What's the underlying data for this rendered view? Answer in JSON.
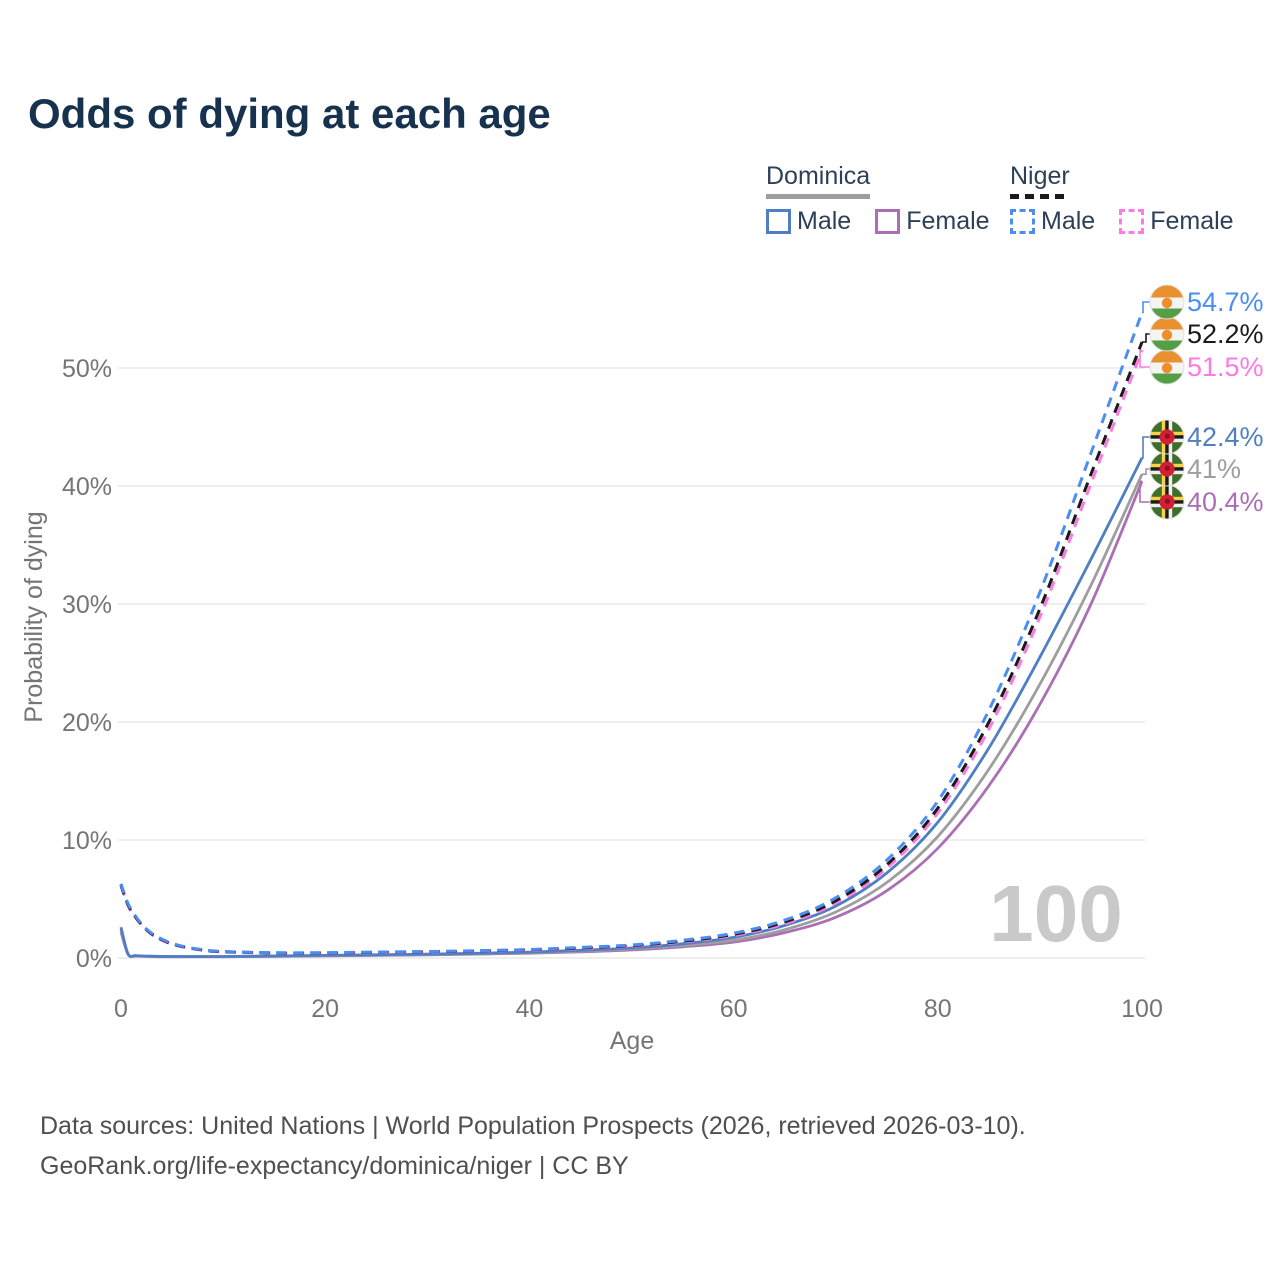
{
  "title": "Odds of dying at each age",
  "legend": {
    "groups": [
      {
        "country": "Dominica",
        "line_style": "solid",
        "underline_color": "#9e9e9e",
        "items": [
          {
            "label": "Male",
            "color": "#4f7fc2",
            "dashed": false
          },
          {
            "label": "Female",
            "color": "#ab6fb5",
            "dashed": false
          }
        ]
      },
      {
        "country": "Niger",
        "line_style": "dashed",
        "underline_color": "#1a1a1a",
        "items": [
          {
            "label": "Male",
            "color": "#4c8df2",
            "dashed": true
          },
          {
            "label": "Female",
            "color": "#fb7be0",
            "dashed": true
          }
        ]
      }
    ]
  },
  "watermark": "100",
  "footer": {
    "line1": "Data sources: United Nations | World Population Prospects (2026, retrieved 2026-03-10).",
    "line2": "GeoRank.org/life-expectancy/dominica/niger | CC BY"
  },
  "chart_data": {
    "type": "line",
    "title": "Odds of dying at each age",
    "xlabel": "Age",
    "ylabel": "Probability of dying",
    "xlim": [
      0,
      100
    ],
    "ylim": [
      0,
      58
    ],
    "grid": "horizontal",
    "legend_position": "top-right",
    "x_ticks": [
      {
        "value": 0,
        "label": "0"
      },
      {
        "value": 20,
        "label": "20"
      },
      {
        "value": 40,
        "label": "40"
      },
      {
        "value": 60,
        "label": "60"
      },
      {
        "value": 80,
        "label": "80"
      },
      {
        "value": 100,
        "label": "100"
      }
    ],
    "y_ticks": [
      {
        "value": 0,
        "label": "0%"
      },
      {
        "value": 10,
        "label": "10%"
      },
      {
        "value": 20,
        "label": "20%"
      },
      {
        "value": 30,
        "label": "30%"
      },
      {
        "value": 40,
        "label": "40%"
      },
      {
        "value": 50,
        "label": "50%"
      }
    ],
    "series": [
      {
        "id": "dominica-female",
        "name": "Dominica Female",
        "country": "Dominica",
        "sex": "Female",
        "color": "#ab6fb5",
        "dashed": false,
        "flag_icon": "dominica-flag-icon",
        "end_label": "40.4%",
        "end_value": 40.4,
        "points": [
          [
            0,
            2.2
          ],
          [
            0.7,
            0.3
          ],
          [
            1.5,
            0.17
          ],
          [
            3,
            0.13
          ],
          [
            5,
            0.11
          ],
          [
            10,
            0.11
          ],
          [
            15,
            0.14
          ],
          [
            20,
            0.18
          ],
          [
            25,
            0.22
          ],
          [
            30,
            0.27
          ],
          [
            35,
            0.33
          ],
          [
            40,
            0.41
          ],
          [
            45,
            0.52
          ],
          [
            50,
            0.68
          ],
          [
            55,
            0.95
          ],
          [
            60,
            1.35
          ],
          [
            65,
            2.15
          ],
          [
            70,
            3.45
          ],
          [
            75,
            5.7
          ],
          [
            80,
            9.3
          ],
          [
            85,
            14.6
          ],
          [
            90,
            21.5
          ],
          [
            95,
            30.0
          ],
          [
            100,
            40.4
          ]
        ]
      },
      {
        "id": "dominica-both",
        "name": "Dominica Both sexes",
        "country": "Dominica",
        "sex": "Both",
        "color": "#9e9e9e",
        "dashed": false,
        "flag_icon": "dominica-flag-icon",
        "end_label": "41%",
        "end_value": 41,
        "points": [
          [
            0,
            2.4
          ],
          [
            0.7,
            0.32
          ],
          [
            1.5,
            0.18
          ],
          [
            3,
            0.14
          ],
          [
            5,
            0.12
          ],
          [
            10,
            0.12
          ],
          [
            15,
            0.15
          ],
          [
            20,
            0.2
          ],
          [
            25,
            0.24
          ],
          [
            30,
            0.3
          ],
          [
            35,
            0.36
          ],
          [
            40,
            0.45
          ],
          [
            45,
            0.58
          ],
          [
            50,
            0.76
          ],
          [
            55,
            1.05
          ],
          [
            60,
            1.5
          ],
          [
            65,
            2.4
          ],
          [
            70,
            3.9
          ],
          [
            75,
            6.4
          ],
          [
            80,
            10.3
          ],
          [
            85,
            16.0
          ],
          [
            90,
            23.2
          ],
          [
            95,
            31.6
          ],
          [
            100,
            41.0
          ]
        ]
      },
      {
        "id": "dominica-male",
        "name": "Dominica Male",
        "country": "Dominica",
        "sex": "Male",
        "color": "#4f7fc2",
        "dashed": false,
        "flag_icon": "dominica-flag-icon",
        "end_label": "42.4%",
        "end_value": 42.4,
        "points": [
          [
            0,
            2.6
          ],
          [
            0.7,
            0.35
          ],
          [
            1.5,
            0.2
          ],
          [
            3,
            0.15
          ],
          [
            5,
            0.13
          ],
          [
            10,
            0.13
          ],
          [
            15,
            0.17
          ],
          [
            20,
            0.22
          ],
          [
            25,
            0.27
          ],
          [
            30,
            0.33
          ],
          [
            35,
            0.4
          ],
          [
            40,
            0.5
          ],
          [
            45,
            0.65
          ],
          [
            50,
            0.85
          ],
          [
            55,
            1.2
          ],
          [
            60,
            1.75
          ],
          [
            65,
            2.75
          ],
          [
            70,
            4.4
          ],
          [
            75,
            7.2
          ],
          [
            80,
            11.5
          ],
          [
            85,
            17.8
          ],
          [
            90,
            25.5
          ],
          [
            95,
            33.8
          ],
          [
            100,
            42.4
          ]
        ]
      },
      {
        "id": "niger-female",
        "name": "Niger Female",
        "country": "Niger",
        "sex": "Female",
        "color": "#fb7be0",
        "dashed": true,
        "flag_icon": "niger-flag-icon",
        "end_label": "51.5%",
        "end_value": 51.5,
        "points": [
          [
            0,
            6.1
          ],
          [
            0.5,
            4.85
          ],
          [
            1,
            3.95
          ],
          [
            2,
            2.8
          ],
          [
            3,
            2.0
          ],
          [
            4,
            1.5
          ],
          [
            5,
            1.18
          ],
          [
            6,
            0.95
          ],
          [
            8,
            0.66
          ],
          [
            10,
            0.51
          ],
          [
            15,
            0.42
          ],
          [
            20,
            0.42
          ],
          [
            25,
            0.46
          ],
          [
            30,
            0.51
          ],
          [
            35,
            0.58
          ],
          [
            40,
            0.67
          ],
          [
            45,
            0.8
          ],
          [
            50,
            1.0
          ],
          [
            55,
            1.35
          ],
          [
            60,
            1.9
          ],
          [
            65,
            2.9
          ],
          [
            70,
            4.65
          ],
          [
            75,
            7.6
          ],
          [
            80,
            12.3
          ],
          [
            85,
            19.4
          ],
          [
            90,
            28.9
          ],
          [
            95,
            40.2
          ],
          [
            100,
            51.5
          ]
        ]
      },
      {
        "id": "niger-both",
        "name": "Niger Both sexes",
        "country": "Niger",
        "sex": "Both",
        "color": "#1a1a1a",
        "dashed": true,
        "flag_icon": "niger-flag-icon",
        "end_label": "52.2%",
        "end_value": 52.2,
        "points": [
          [
            0,
            6.2
          ],
          [
            0.5,
            4.9
          ],
          [
            1,
            4.0
          ],
          [
            2,
            2.85
          ],
          [
            3,
            2.05
          ],
          [
            4,
            1.55
          ],
          [
            5,
            1.2
          ],
          [
            6,
            0.97
          ],
          [
            8,
            0.68
          ],
          [
            10,
            0.53
          ],
          [
            15,
            0.43
          ],
          [
            20,
            0.43
          ],
          [
            25,
            0.48
          ],
          [
            30,
            0.53
          ],
          [
            35,
            0.6
          ],
          [
            40,
            0.7
          ],
          [
            45,
            0.85
          ],
          [
            50,
            1.05
          ],
          [
            55,
            1.42
          ],
          [
            60,
            2.0
          ],
          [
            65,
            3.05
          ],
          [
            70,
            4.85
          ],
          [
            75,
            7.9
          ],
          [
            80,
            12.7
          ],
          [
            85,
            20.0
          ],
          [
            90,
            29.6
          ],
          [
            95,
            41.0
          ],
          [
            100,
            52.2
          ]
        ]
      },
      {
        "id": "niger-male",
        "name": "Niger Male",
        "country": "Niger",
        "sex": "Male",
        "color": "#4c8df2",
        "dashed": true,
        "flag_icon": "niger-flag-icon",
        "end_label": "54.7%",
        "end_value": 54.7,
        "points": [
          [
            0,
            6.3
          ],
          [
            0.5,
            5.0
          ],
          [
            1,
            4.1
          ],
          [
            2,
            2.9
          ],
          [
            3,
            2.1
          ],
          [
            4,
            1.6
          ],
          [
            5,
            1.25
          ],
          [
            6,
            1.0
          ],
          [
            8,
            0.7
          ],
          [
            10,
            0.55
          ],
          [
            15,
            0.45
          ],
          [
            20,
            0.45
          ],
          [
            25,
            0.5
          ],
          [
            30,
            0.55
          ],
          [
            35,
            0.62
          ],
          [
            40,
            0.72
          ],
          [
            45,
            0.9
          ],
          [
            50,
            1.1
          ],
          [
            55,
            1.5
          ],
          [
            60,
            2.1
          ],
          [
            65,
            3.2
          ],
          [
            70,
            5.1
          ],
          [
            75,
            8.3
          ],
          [
            80,
            13.3
          ],
          [
            85,
            21.0
          ],
          [
            90,
            31.0
          ],
          [
            95,
            42.8
          ],
          [
            100,
            54.7
          ]
        ]
      }
    ]
  }
}
